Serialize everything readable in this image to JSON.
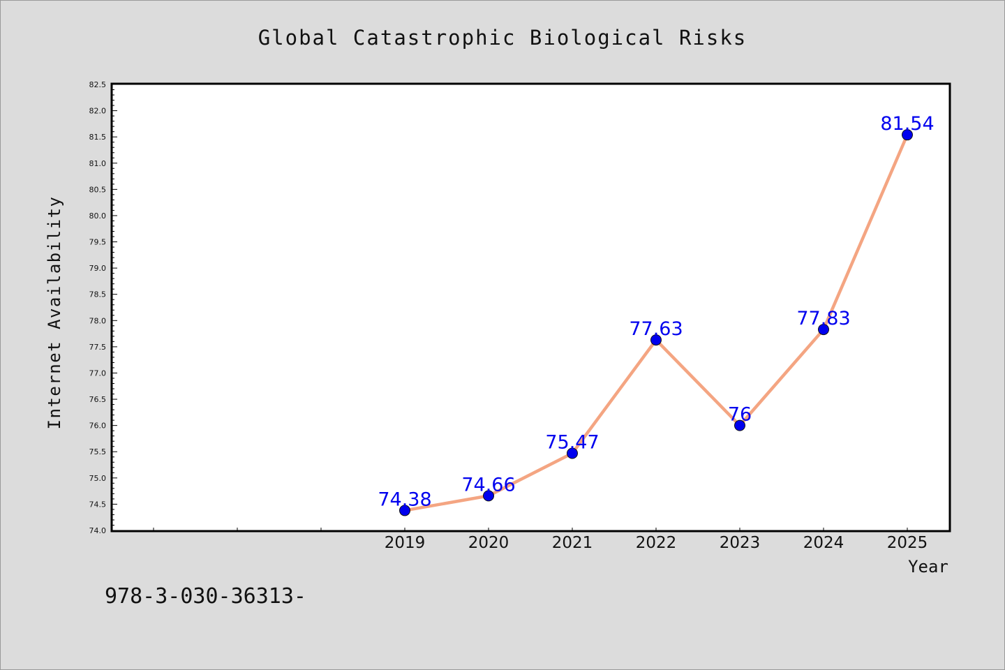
{
  "chart_data": {
    "type": "line",
    "title": "Global Catastrophic Biological Risks",
    "xlabel": "Year",
    "ylabel": "Internet Availability",
    "x": [
      "2019",
      "2020",
      "2021",
      "2022",
      "2023",
      "2024",
      "2025"
    ],
    "series": [
      {
        "values": [
          74.38,
          74.66,
          75.47,
          77.63,
          76.0,
          77.83,
          81.54
        ],
        "labels": [
          "74.38",
          "74.66",
          "75.47",
          "77.63",
          "76",
          "77.83",
          "81.54"
        ]
      }
    ],
    "ylim": [
      74.0,
      82.5
    ],
    "yticks": [
      "74.0",
      "74.5",
      "75.0",
      "75.5",
      "76.0",
      "76.5",
      "77.0",
      "77.5",
      "78.0",
      "78.5",
      "79.0",
      "79.5",
      "80.0",
      "80.5",
      "81.0",
      "81.5",
      "82.0",
      "82.5"
    ],
    "grid": false,
    "line_color": "#f4a582",
    "marker_color": "#0000ee",
    "label_color": "#0000ee"
  },
  "footer": {
    "code": "978-3-030-36313-"
  }
}
